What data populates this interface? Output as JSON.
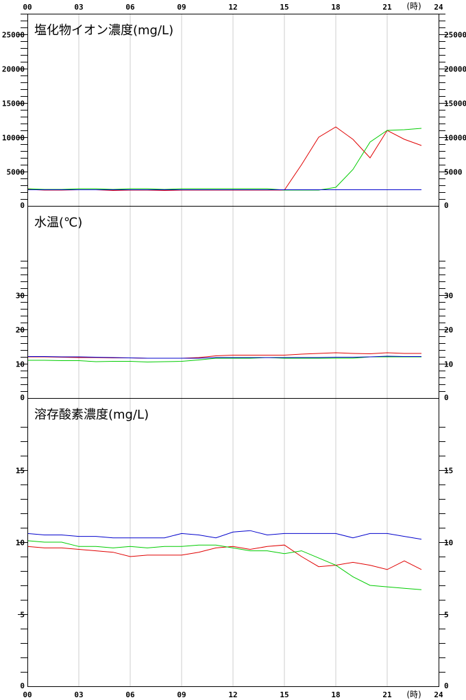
{
  "x_axis": {
    "ticks": [
      "00",
      "03",
      "06",
      "09",
      "12",
      "15",
      "18",
      "21",
      "24"
    ],
    "unit_label": "(時)"
  },
  "colors": {
    "red": "#e00000",
    "green": "#00cc00",
    "blue": "#0000cc",
    "grid": "#cccccc",
    "axis": "#000000"
  },
  "chart_data": [
    {
      "type": "line",
      "title": "塩化物イオン濃度(mg/L)",
      "ylim": [
        0,
        28000
      ],
      "y_ticks": [
        0,
        5000,
        10000,
        15000,
        20000,
        25000
      ],
      "y_minor_step": 1000,
      "x": [
        0,
        1,
        2,
        3,
        4,
        5,
        6,
        7,
        8,
        9,
        10,
        11,
        12,
        13,
        14,
        15,
        16,
        17,
        18,
        19,
        20,
        21,
        22,
        23
      ],
      "series": [
        {
          "color": "red",
          "values": [
            2400,
            2300,
            2300,
            2350,
            2350,
            2250,
            2300,
            2300,
            2250,
            2300,
            2300,
            2300,
            2300,
            2300,
            2300,
            2300,
            6000,
            10000,
            11500,
            9700,
            7000,
            11000,
            9700,
            8800
          ]
        },
        {
          "color": "green",
          "values": [
            2500,
            2400,
            2400,
            2500,
            2500,
            2400,
            2500,
            2500,
            2400,
            2500,
            2500,
            2500,
            2500,
            2500,
            2500,
            2300,
            2300,
            2300,
            2700,
            5300,
            9300,
            11000,
            11100,
            11300
          ]
        },
        {
          "color": "blue",
          "values": [
            2350,
            2350,
            2350,
            2350,
            2350,
            2350,
            2350,
            2350,
            2350,
            2350,
            2350,
            2350,
            2350,
            2350,
            2350,
            2350,
            2350,
            2350,
            2350,
            2350,
            2350,
            2350,
            2350,
            2350
          ]
        }
      ]
    },
    {
      "type": "line",
      "title": "水温(℃)",
      "ylim": [
        0,
        56
      ],
      "y_ticks": [
        0,
        10,
        20,
        30
      ],
      "y_minor_step": 2,
      "minor_max": 40,
      "x": [
        0,
        1,
        2,
        3,
        4,
        5,
        6,
        7,
        8,
        9,
        10,
        11,
        12,
        13,
        14,
        15,
        16,
        17,
        18,
        19,
        20,
        21,
        22,
        23
      ],
      "series": [
        {
          "color": "red",
          "values": [
            12,
            12,
            11.9,
            11.8,
            11.8,
            11.7,
            11.7,
            11.6,
            11.6,
            11.6,
            11.8,
            12.3,
            12.5,
            12.5,
            12.5,
            12.5,
            12.8,
            13,
            13.2,
            13,
            12.9,
            13.2,
            13,
            13
          ]
        },
        {
          "color": "green",
          "values": [
            11,
            11,
            10.9,
            10.9,
            10.6,
            10.7,
            10.7,
            10.5,
            10.6,
            10.7,
            11.1,
            11.6,
            11.6,
            11.6,
            11.8,
            11.6,
            11.6,
            11.6,
            11.6,
            11.6,
            12,
            12,
            12,
            12
          ]
        },
        {
          "color": "blue",
          "values": [
            12.1,
            12.1,
            12,
            12,
            11.9,
            11.8,
            11.7,
            11.6,
            11.6,
            11.6,
            11.6,
            11.8,
            11.8,
            11.8,
            11.8,
            11.8,
            11.8,
            11.8,
            11.9,
            11.9,
            12,
            12.2,
            12.1,
            12.1
          ]
        }
      ]
    },
    {
      "type": "line",
      "title": "溶存酸素濃度(mg/L)",
      "ylim": [
        0,
        20
      ],
      "y_ticks": [
        0,
        5,
        10,
        15
      ],
      "y_minor_step": 1,
      "minor_max": 18,
      "x": [
        0,
        1,
        2,
        3,
        4,
        5,
        6,
        7,
        8,
        9,
        10,
        11,
        12,
        13,
        14,
        15,
        16,
        17,
        18,
        19,
        20,
        21,
        22,
        23
      ],
      "series": [
        {
          "color": "red",
          "values": [
            9.7,
            9.6,
            9.6,
            9.5,
            9.4,
            9.3,
            9,
            9.1,
            9.1,
            9.1,
            9.3,
            9.6,
            9.7,
            9.5,
            9.7,
            9.8,
            9,
            8.3,
            8.4,
            8.6,
            8.4,
            8.1,
            8.7,
            8.1
          ]
        },
        {
          "color": "green",
          "values": [
            10.1,
            10,
            10,
            9.7,
            9.7,
            9.6,
            9.7,
            9.6,
            9.7,
            9.7,
            9.8,
            9.8,
            9.6,
            9.4,
            9.4,
            9.2,
            9.4,
            8.9,
            8.4,
            7.6,
            7,
            6.9,
            6.8,
            6.7
          ]
        },
        {
          "color": "blue",
          "values": [
            10.6,
            10.5,
            10.5,
            10.4,
            10.4,
            10.3,
            10.3,
            10.3,
            10.3,
            10.6,
            10.5,
            10.3,
            10.7,
            10.8,
            10.5,
            10.6,
            10.6,
            10.6,
            10.6,
            10.3,
            10.6,
            10.6,
            10.4,
            10.2
          ]
        }
      ]
    }
  ]
}
